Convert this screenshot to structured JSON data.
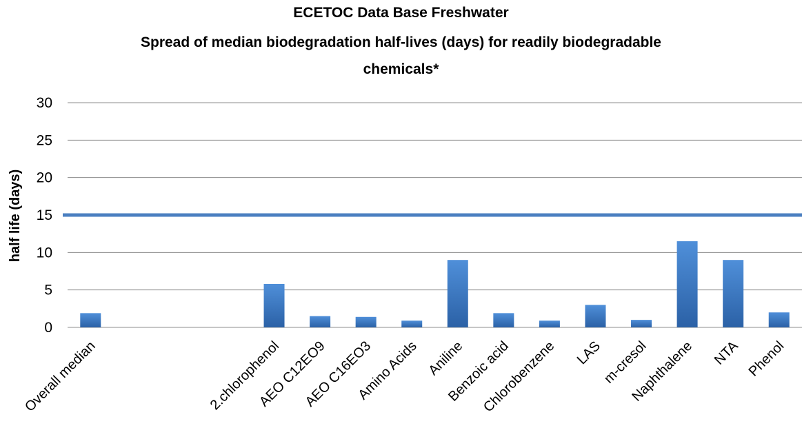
{
  "chart_data": {
    "type": "bar",
    "title": "ECETOC Data Base Freshwater",
    "subtitle_line1": "Spread of median biodegradation half-lives (days) for readily biodegradable",
    "subtitle_line2": "chemicals*",
    "xlabel": "",
    "ylabel": "half life (days)",
    "ylim": [
      0,
      30
    ],
    "yticks": [
      "0",
      "5",
      "10",
      "15",
      "20",
      "25",
      "30"
    ],
    "grid": true,
    "legend": "none",
    "categories": [
      "Overall median",
      "",
      "",
      "",
      "2.chlorophenol",
      "AEO C12EO9",
      "AEO C16EO3",
      "Amino Acids",
      "Aniline",
      "Benzoic acid",
      "Chlorobenzene",
      "LAS",
      "m-cresol",
      "Naphthalene",
      "NTA",
      "Phenol"
    ],
    "values": [
      1.9,
      null,
      null,
      null,
      5.8,
      1.5,
      1.4,
      0.9,
      9.0,
      1.9,
      0.9,
      3.0,
      1.0,
      11.5,
      9.0,
      2.0
    ],
    "reference_line": {
      "y": 15
    },
    "colors": {
      "bar_light": "#4f8fd9",
      "bar_dark": "#2b61a6",
      "reference_line": "#4a7fc0",
      "grid": "#8c8c8c"
    }
  }
}
